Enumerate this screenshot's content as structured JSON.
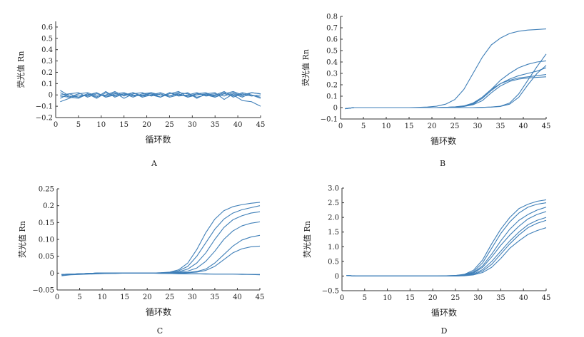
{
  "chart_data": [
    {
      "panel_label": "A",
      "type": "line",
      "xlabel": "循环数",
      "ylabel": "荧光值 Rn",
      "xlim": [
        0,
        45
      ],
      "ylim": [
        -0.2,
        0.65
      ],
      "xticks": [
        "0",
        "5",
        "10",
        "15",
        "20",
        "25",
        "30",
        "35",
        "40",
        "45"
      ],
      "yticks": [
        "−0.2",
        "−0.1",
        "0",
        "0.1",
        "0.2",
        "0.3",
        "0.4",
        "0.5",
        "0.6"
      ],
      "ytick_values": [
        -0.2,
        -0.1,
        0,
        0.1,
        0.2,
        0.3,
        0.4,
        0.5,
        0.6
      ],
      "x": [
        1,
        3,
        5,
        7,
        9,
        11,
        13,
        15,
        17,
        19,
        21,
        23,
        25,
        27,
        29,
        31,
        33,
        35,
        37,
        39,
        41,
        43,
        45
      ],
      "series": [
        {
          "values": [
            0.02,
            -0.02,
            -0.03,
            0.01,
            -0.02,
            0.03,
            -0.02,
            0.01,
            0.0,
            -0.01,
            0.02,
            -0.02,
            0.01,
            0.03,
            -0.02,
            0.01,
            0.02,
            -0.02,
            0.01,
            -0.01,
            0.02,
            0.0,
            -0.02
          ]
        },
        {
          "values": [
            -0.03,
            0.01,
            0.02,
            -0.02,
            0.01,
            -0.01,
            0.02,
            -0.03,
            0.01,
            0.02,
            -0.01,
            0.01,
            -0.02,
            0.0,
            0.02,
            -0.03,
            0.01,
            0.02,
            -0.04,
            0.01,
            -0.02,
            0.02,
            0.01
          ]
        },
        {
          "values": [
            0.04,
            -0.01,
            -0.02,
            0.0,
            0.02,
            -0.02,
            0.01,
            0.02,
            -0.01,
            0.0,
            0.01,
            -0.02,
            0.02,
            -0.01,
            0.0,
            0.02,
            -0.01,
            0.0,
            0.03,
            -0.02,
            0.01,
            -0.01,
            0.0
          ]
        },
        {
          "values": [
            -0.01,
            -0.02,
            0.01,
            0.02,
            -0.01,
            0.0,
            0.03,
            -0.01,
            0.02,
            -0.02,
            0.0,
            0.02,
            -0.01,
            0.01,
            -0.02,
            0.0,
            0.01,
            -0.01,
            0.02,
            0.0,
            -0.05,
            -0.06,
            -0.1
          ]
        },
        {
          "values": [
            -0.06,
            -0.03,
            0.0,
            -0.01,
            0.02,
            -0.02,
            0.0,
            0.01,
            -0.02,
            0.01,
            0.02,
            0.0,
            -0.01,
            0.02,
            0.01,
            -0.02,
            0.0,
            0.01,
            -0.01,
            0.02,
            -0.01,
            0.0,
            -0.03
          ]
        },
        {
          "values": [
            0.0,
            0.01,
            -0.02,
            0.01,
            -0.03,
            0.02,
            -0.01,
            0.0,
            0.02,
            -0.01,
            0.0,
            -0.02,
            0.02,
            0.0,
            -0.01,
            0.01,
            0.0,
            -0.02,
            0.01,
            0.03,
            0.0,
            0.02,
            0.01
          ]
        }
      ]
    },
    {
      "panel_label": "B",
      "type": "line",
      "xlabel": "循环数",
      "ylabel": "荧光值 Rn",
      "xlim": [
        0,
        45
      ],
      "ylim": [
        -0.1,
        0.8
      ],
      "xticks": [
        "0",
        "5",
        "10",
        "15",
        "20",
        "25",
        "30",
        "35",
        "40",
        "45"
      ],
      "yticks": [
        "−0.1",
        "0",
        "0.1",
        "0.2",
        "0.3",
        "0.4",
        "0.5",
        "0.6",
        "0.7",
        "0.8"
      ],
      "ytick_values": [
        -0.1,
        0,
        0.1,
        0.2,
        0.3,
        0.4,
        0.5,
        0.6,
        0.7,
        0.8
      ],
      "x": [
        1,
        3,
        5,
        7,
        9,
        11,
        13,
        15,
        17,
        19,
        21,
        23,
        25,
        27,
        29,
        31,
        33,
        35,
        37,
        39,
        41,
        43,
        45
      ],
      "series": [
        {
          "values": [
            -0.01,
            0.0,
            0.0,
            0.0,
            0.0,
            0.0,
            0.0,
            0.0,
            0.002,
            0.005,
            0.012,
            0.03,
            0.07,
            0.16,
            0.3,
            0.44,
            0.55,
            0.61,
            0.65,
            0.67,
            0.68,
            0.685,
            0.69
          ]
        },
        {
          "values": [
            -0.01,
            0.0,
            0.0,
            0.0,
            0.0,
            0.0,
            0.0,
            0.0,
            0.0,
            0.0,
            0.0,
            0.002,
            0.006,
            0.015,
            0.04,
            0.09,
            0.16,
            0.24,
            0.3,
            0.35,
            0.38,
            0.4,
            0.41
          ]
        },
        {
          "values": [
            -0.01,
            0.0,
            0.0,
            0.0,
            0.0,
            0.0,
            0.0,
            0.0,
            0.0,
            0.0,
            0.0,
            0.002,
            0.005,
            0.012,
            0.03,
            0.08,
            0.15,
            0.21,
            0.25,
            0.28,
            0.3,
            0.32,
            0.35
          ]
        },
        {
          "values": [
            -0.01,
            0.0,
            0.0,
            0.0,
            0.0,
            0.0,
            0.0,
            0.0,
            0.0,
            0.0,
            0.0,
            0.002,
            0.005,
            0.013,
            0.035,
            0.09,
            0.16,
            0.21,
            0.24,
            0.26,
            0.27,
            0.28,
            0.29
          ]
        },
        {
          "values": [
            -0.01,
            0.0,
            0.0,
            0.0,
            0.0,
            0.0,
            0.0,
            0.0,
            0.0,
            0.0,
            0.0,
            0.002,
            0.004,
            0.01,
            0.025,
            0.06,
            0.13,
            0.19,
            0.23,
            0.25,
            0.26,
            0.265,
            0.27
          ]
        },
        {
          "values": [
            -0.01,
            0.0,
            0.0,
            0.0,
            0.0,
            0.0,
            0.0,
            0.0,
            0.0,
            0.0,
            0.0,
            0.0,
            0.0,
            0.0,
            0.0,
            0.002,
            0.005,
            0.012,
            0.04,
            0.12,
            0.24,
            0.36,
            0.47
          ]
        },
        {
          "values": [
            -0.01,
            0.0,
            0.0,
            0.0,
            0.0,
            0.0,
            0.0,
            0.0,
            0.0,
            0.0,
            0.0,
            0.0,
            0.0,
            0.0,
            0.0,
            0.002,
            0.004,
            0.01,
            0.03,
            0.09,
            0.2,
            0.3,
            0.37
          ]
        }
      ]
    },
    {
      "panel_label": "C",
      "type": "line",
      "xlabel": "循环数",
      "ylabel": "荧光值 Rn",
      "xlim": [
        0,
        45
      ],
      "ylim": [
        -0.05,
        0.25
      ],
      "xticks": [
        "0",
        "5",
        "10",
        "15",
        "20",
        "25",
        "30",
        "35",
        "40",
        "45"
      ],
      "yticks": [
        "−0.05",
        "0",
        "0.05",
        "0.10",
        "0.15",
        "0.2",
        "0.25"
      ],
      "ytick_values": [
        -0.05,
        0,
        0.05,
        0.1,
        0.15,
        0.2,
        0.25
      ],
      "x": [
        1,
        3,
        5,
        7,
        9,
        11,
        13,
        15,
        17,
        19,
        21,
        23,
        25,
        27,
        29,
        31,
        33,
        35,
        37,
        39,
        41,
        43,
        45
      ],
      "series": [
        {
          "values": [
            -0.004,
            -0.003,
            -0.002,
            -0.001,
            0.0,
            0.0,
            0.0,
            0.0,
            0.0,
            0.0,
            0.0,
            0.001,
            0.003,
            0.01,
            0.03,
            0.07,
            0.12,
            0.16,
            0.185,
            0.197,
            0.203,
            0.207,
            0.21
          ]
        },
        {
          "values": [
            -0.004,
            -0.003,
            -0.002,
            -0.001,
            0.0,
            0.0,
            0.0,
            0.0,
            0.0,
            0.0,
            0.0,
            0.001,
            0.002,
            0.007,
            0.02,
            0.05,
            0.09,
            0.13,
            0.16,
            0.178,
            0.188,
            0.194,
            0.2
          ]
        },
        {
          "values": [
            -0.004,
            -0.003,
            -0.002,
            -0.001,
            0.0,
            0.0,
            0.0,
            0.0,
            0.0,
            0.0,
            0.0,
            0.0,
            0.001,
            0.004,
            0.012,
            0.03,
            0.06,
            0.1,
            0.135,
            0.158,
            0.17,
            0.178,
            0.182
          ]
        },
        {
          "values": [
            -0.004,
            -0.003,
            -0.002,
            -0.001,
            0.0,
            0.0,
            0.0,
            0.0,
            0.0,
            0.0,
            0.0,
            0.0,
            0.001,
            0.002,
            0.006,
            0.015,
            0.035,
            0.065,
            0.1,
            0.125,
            0.14,
            0.148,
            0.152
          ]
        },
        {
          "values": [
            -0.004,
            -0.003,
            -0.002,
            -0.001,
            0.0,
            0.0,
            0.0,
            0.0,
            0.0,
            0.0,
            0.0,
            0.0,
            0.0,
            0.001,
            0.002,
            0.005,
            0.012,
            0.03,
            0.055,
            0.08,
            0.098,
            0.107,
            0.112
          ]
        },
        {
          "values": [
            -0.004,
            -0.003,
            -0.002,
            -0.001,
            0.0,
            0.0,
            0.0,
            0.0,
            0.0,
            0.0,
            0.0,
            0.0,
            0.0,
            0.0,
            0.001,
            0.003,
            0.008,
            0.02,
            0.04,
            0.06,
            0.072,
            0.078,
            0.08
          ]
        },
        {
          "values": [
            -0.006,
            -0.004,
            -0.003,
            -0.002,
            -0.001,
            -0.001,
            0.0,
            0.0,
            0.0,
            0.0,
            0.0,
            -0.001,
            -0.001,
            -0.002,
            -0.002,
            -0.002,
            -0.003,
            -0.003,
            -0.003,
            -0.003,
            -0.004,
            -0.004,
            -0.005
          ]
        },
        {
          "values": [
            -0.008,
            -0.005,
            -0.004,
            -0.003,
            -0.002,
            -0.001,
            -0.001,
            0.0,
            0.0,
            0.0,
            0.0,
            0.0,
            -0.001,
            -0.001,
            -0.002,
            -0.002,
            -0.002,
            -0.003,
            -0.003,
            -0.003,
            -0.003,
            -0.004,
            -0.004
          ]
        }
      ]
    },
    {
      "panel_label": "D",
      "type": "line",
      "xlabel": "循环数",
      "ylabel": "荧光值 Rn",
      "xlim": [
        0,
        45
      ],
      "ylim": [
        -0.5,
        3.0
      ],
      "xticks": [
        "0",
        "5",
        "10",
        "15",
        "20",
        "25",
        "30",
        "35",
        "40",
        "45"
      ],
      "yticks": [
        "−0.5",
        "0",
        "0.5",
        "1.0",
        "1.5",
        "2.0",
        "2.5",
        "3.0"
      ],
      "ytick_values": [
        -0.5,
        0,
        0.5,
        1.0,
        1.5,
        2.0,
        2.5,
        3.0
      ],
      "x": [
        1,
        3,
        5,
        7,
        9,
        11,
        13,
        15,
        17,
        19,
        21,
        23,
        25,
        27,
        29,
        31,
        33,
        35,
        37,
        39,
        41,
        43,
        45
      ],
      "series": [
        {
          "values": [
            0.02,
            0.0,
            0.0,
            0.0,
            0.0,
            0.0,
            0.0,
            0.0,
            0.0,
            0.0,
            0.0,
            0.01,
            0.02,
            0.06,
            0.2,
            0.55,
            1.1,
            1.6,
            2.0,
            2.3,
            2.45,
            2.55,
            2.6
          ]
        },
        {
          "values": [
            0.02,
            0.0,
            0.0,
            0.0,
            0.0,
            0.0,
            0.0,
            0.0,
            0.0,
            0.0,
            0.0,
            0.01,
            0.02,
            0.05,
            0.15,
            0.45,
            0.95,
            1.45,
            1.85,
            2.15,
            2.35,
            2.45,
            2.5
          ]
        },
        {
          "values": [
            0.02,
            0.0,
            0.0,
            0.0,
            0.0,
            0.0,
            0.0,
            0.0,
            0.0,
            0.0,
            0.0,
            0.0,
            0.01,
            0.04,
            0.12,
            0.35,
            0.75,
            1.2,
            1.6,
            1.9,
            2.1,
            2.25,
            2.35
          ]
        },
        {
          "values": [
            0.02,
            0.0,
            0.0,
            0.0,
            0.0,
            0.0,
            0.0,
            0.0,
            0.0,
            0.0,
            0.0,
            0.0,
            0.01,
            0.03,
            0.1,
            0.3,
            0.65,
            1.05,
            1.4,
            1.7,
            1.95,
            2.1,
            2.2
          ]
        },
        {
          "values": [
            0.02,
            0.0,
            0.0,
            0.0,
            0.0,
            0.0,
            0.0,
            0.0,
            0.0,
            0.0,
            0.0,
            0.0,
            0.01,
            0.02,
            0.07,
            0.22,
            0.5,
            0.85,
            1.2,
            1.5,
            1.75,
            1.9,
            2.0
          ]
        },
        {
          "values": [
            0.02,
            0.0,
            0.0,
            0.0,
            0.0,
            0.0,
            0.0,
            0.0,
            0.0,
            0.0,
            0.0,
            0.0,
            0.0,
            0.02,
            0.05,
            0.17,
            0.4,
            0.75,
            1.1,
            1.4,
            1.65,
            1.8,
            1.9
          ]
        },
        {
          "values": [
            0.02,
            0.0,
            0.0,
            0.0,
            0.0,
            0.0,
            0.0,
            0.0,
            0.0,
            0.0,
            0.0,
            0.0,
            0.0,
            0.01,
            0.04,
            0.12,
            0.3,
            0.6,
            0.95,
            1.2,
            1.42,
            1.55,
            1.65
          ]
        }
      ]
    }
  ],
  "style": {
    "line_color": "#3f7fb8",
    "axis_color": "#333333"
  }
}
